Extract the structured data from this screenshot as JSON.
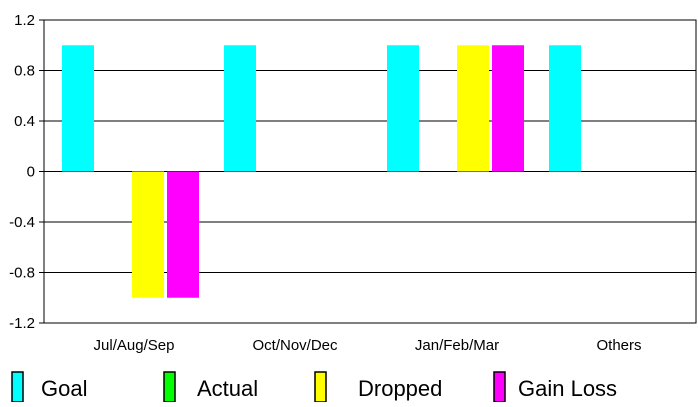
{
  "chart_data": {
    "type": "bar",
    "categories": [
      "Jul/Aug/Sep",
      "Oct/Nov/Dec",
      "Jan/Feb/Mar",
      "Others"
    ],
    "series": [
      {
        "name": "Goal",
        "color": "#00ffff",
        "values": [
          1,
          1,
          1,
          1
        ]
      },
      {
        "name": "Actual",
        "color": "#00ff00",
        "values": [
          0,
          0,
          0,
          0
        ]
      },
      {
        "name": "Dropped",
        "color": "#ffff00",
        "values": [
          -1,
          0,
          1,
          0
        ]
      },
      {
        "name": "Gain Loss",
        "color": "#ff00ff",
        "values": [
          -1,
          0,
          1,
          0
        ]
      }
    ],
    "ylim": [
      -1.2,
      1.2
    ],
    "yticks": [
      "1.2",
      "0.8",
      "0.4",
      "0",
      "-0.4",
      "-0.8",
      "-1.2"
    ],
    "ytick_values": [
      1.2,
      0.8,
      0.4,
      0,
      -0.4,
      -0.8,
      -1.2
    ],
    "grid": "horizontal",
    "legend": "bottom"
  }
}
